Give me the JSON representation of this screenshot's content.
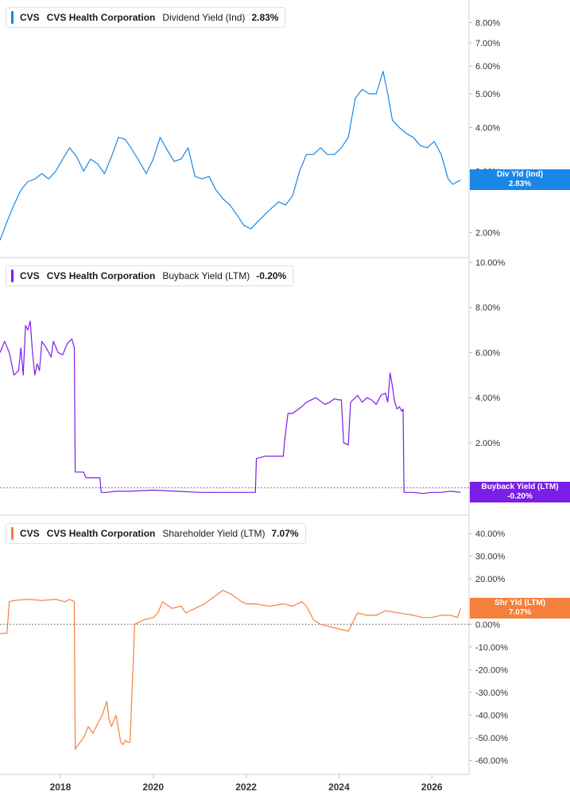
{
  "x_axis": {
    "ticks": [
      "2018",
      "2020",
      "2022",
      "2024",
      "2026"
    ]
  },
  "panels": [
    {
      "id": "div",
      "legend": {
        "ticker": "CVS",
        "company": "CVS Health Corporation",
        "metric": "Dividend Yield (Ind)",
        "value": "2.83%"
      },
      "tag": {
        "label": "Div Yld (Ind)",
        "value": "2.83%"
      },
      "color": "#1a87e6",
      "ticks": [
        "8.00%",
        "7.00%",
        "6.00%",
        "5.00%",
        "4.00%",
        "3.00%",
        "2.00%"
      ]
    },
    {
      "id": "buyback",
      "legend": {
        "ticker": "CVS",
        "company": "CVS Health Corporation",
        "metric": "Buyback Yield (LTM)",
        "value": "-0.20%"
      },
      "tag": {
        "label": "Buyback Yield (LTM)",
        "value": "-0.20%"
      },
      "color": "#7a1ee8",
      "ticks": [
        "10.00%",
        "8.00%",
        "6.00%",
        "4.00%",
        "2.00%"
      ]
    },
    {
      "id": "shareholder",
      "legend": {
        "ticker": "CVS",
        "company": "CVS Health Corporation",
        "metric": "Shareholder Yield (LTM)",
        "value": "7.07%"
      },
      "tag": {
        "label": "Shr Yld (LTM)",
        "value": "7.07%"
      },
      "color": "#f57f3c",
      "ticks": [
        "40.00%",
        "30.00%",
        "20.00%",
        "10.00%",
        "0.00%",
        "-10.00%",
        "-20.00%",
        "-30.00%",
        "-40.00%",
        "-50.00%",
        "-60.00%"
      ]
    }
  ],
  "chart_data": [
    {
      "type": "line",
      "title": "CVS Health Corporation Dividend Yield (Ind)",
      "y_scale": "log",
      "ylim": [
        1.75,
        9.0
      ],
      "xlim": [
        2016.7,
        2026.8
      ],
      "series": [
        {
          "name": "Dividend Yield (Ind)",
          "x": [
            2016.7,
            2016.85,
            2017.0,
            2017.15,
            2017.3,
            2017.45,
            2017.6,
            2017.75,
            2017.9,
            2018.05,
            2018.2,
            2018.35,
            2018.5,
            2018.65,
            2018.8,
            2018.95,
            2019.1,
            2019.25,
            2019.4,
            2019.55,
            2019.7,
            2019.85,
            2020.0,
            2020.15,
            2020.3,
            2020.45,
            2020.6,
            2020.75,
            2020.9,
            2021.05,
            2021.2,
            2021.35,
            2021.5,
            2021.65,
            2021.8,
            2021.95,
            2022.1,
            2022.25,
            2022.4,
            2022.55,
            2022.7,
            2022.85,
            2023.0,
            2023.15,
            2023.3,
            2023.45,
            2023.6,
            2023.75,
            2023.9,
            2024.05,
            2024.2,
            2024.35,
            2024.5,
            2024.65,
            2024.8,
            2024.95,
            2025.05,
            2025.15,
            2025.3,
            2025.45,
            2025.6,
            2025.75,
            2025.9,
            2026.05,
            2026.2,
            2026.35,
            2026.45,
            2026.55,
            2026.62
          ],
          "values": [
            1.9,
            2.15,
            2.4,
            2.65,
            2.8,
            2.85,
            2.95,
            2.85,
            3.0,
            3.25,
            3.5,
            3.3,
            3.0,
            3.25,
            3.15,
            2.95,
            3.3,
            3.75,
            3.7,
            3.45,
            3.2,
            2.95,
            3.25,
            3.75,
            3.45,
            3.2,
            3.25,
            3.5,
            2.9,
            2.85,
            2.9,
            2.65,
            2.5,
            2.4,
            2.25,
            2.1,
            2.05,
            2.15,
            2.25,
            2.35,
            2.45,
            2.4,
            2.55,
            3.0,
            3.35,
            3.35,
            3.5,
            3.35,
            3.35,
            3.5,
            3.75,
            4.85,
            5.15,
            5.0,
            5.0,
            5.8,
            5.0,
            4.2,
            4.0,
            3.85,
            3.75,
            3.55,
            3.5,
            3.65,
            3.35,
            2.85,
            2.75,
            2.8,
            2.83
          ]
        }
      ]
    },
    {
      "type": "line",
      "title": "CVS Health Corporation Buyback Yield (LTM)",
      "ylim": [
        -1.0,
        10.0
      ],
      "xlim": [
        2016.7,
        2026.8
      ],
      "series": [
        {
          "name": "Buyback Yield (LTM)",
          "x": [
            2016.7,
            2016.8,
            2016.9,
            2017.0,
            2017.1,
            2017.15,
            2017.2,
            2017.25,
            2017.3,
            2017.35,
            2017.4,
            2017.45,
            2017.5,
            2017.55,
            2017.6,
            2017.7,
            2017.8,
            2017.85,
            2017.95,
            2018.05,
            2018.15,
            2018.25,
            2018.3,
            2018.32,
            2018.5,
            2018.55,
            2018.75,
            2018.85,
            2018.88,
            2019.0,
            2019.2,
            2019.5,
            2020.0,
            2020.5,
            2021.0,
            2021.5,
            2022.0,
            2022.2,
            2022.22,
            2022.4,
            2022.6,
            2022.8,
            2022.83,
            2022.9,
            2023.0,
            2023.2,
            2023.3,
            2023.5,
            2023.7,
            2023.8,
            2023.9,
            2024.0,
            2024.05,
            2024.1,
            2024.2,
            2024.25,
            2024.3,
            2024.4,
            2024.5,
            2024.6,
            2024.7,
            2024.8,
            2024.9,
            2025.0,
            2025.05,
            2025.1,
            2025.15,
            2025.2,
            2025.25,
            2025.3,
            2025.35,
            2025.38,
            2025.4,
            2025.5,
            2025.6,
            2025.8,
            2026.0,
            2026.2,
            2026.4,
            2026.62
          ],
          "values": [
            6.0,
            6.5,
            6.0,
            5.0,
            5.2,
            6.2,
            5.0,
            7.2,
            7.0,
            7.4,
            6.0,
            5.0,
            5.5,
            5.2,
            6.5,
            6.2,
            5.8,
            6.5,
            6.0,
            5.9,
            6.4,
            6.6,
            6.2,
            0.7,
            0.7,
            0.45,
            0.45,
            0.45,
            -0.2,
            -0.2,
            -0.15,
            -0.15,
            -0.1,
            -0.15,
            -0.2,
            -0.2,
            -0.2,
            -0.2,
            1.3,
            1.4,
            1.4,
            1.4,
            2.1,
            3.3,
            3.3,
            3.6,
            3.8,
            4.0,
            3.7,
            3.8,
            3.95,
            3.9,
            3.9,
            2.0,
            1.9,
            3.8,
            3.9,
            4.1,
            3.8,
            4.0,
            3.9,
            3.7,
            4.1,
            4.2,
            3.8,
            5.1,
            4.5,
            3.8,
            3.5,
            3.6,
            3.4,
            3.5,
            -0.2,
            -0.2,
            -0.2,
            -0.25,
            -0.2,
            -0.2,
            -0.15,
            -0.2
          ]
        }
      ]
    },
    {
      "type": "line",
      "title": "CVS Health Corporation Shareholder Yield (LTM)",
      "ylim": [
        -64,
        46
      ],
      "xlim": [
        2016.7,
        2026.8
      ],
      "series": [
        {
          "name": "Shareholder Yield (LTM)",
          "x": [
            2016.7,
            2016.85,
            2016.9,
            2017.0,
            2017.3,
            2017.6,
            2017.9,
            2018.1,
            2018.2,
            2018.3,
            2018.32,
            2018.35,
            2018.5,
            2018.6,
            2018.7,
            2018.8,
            2018.9,
            2019.0,
            2019.05,
            2019.1,
            2019.2,
            2019.3,
            2019.35,
            2019.4,
            2019.45,
            2019.5,
            2019.6,
            2019.8,
            2020.0,
            2020.1,
            2020.2,
            2020.4,
            2020.6,
            2020.7,
            2020.9,
            2021.1,
            2021.3,
            2021.5,
            2021.6,
            2021.7,
            2021.9,
            2022.0,
            2022.2,
            2022.5,
            2022.8,
            2023.0,
            2023.2,
            2023.3,
            2023.45,
            2023.6,
            2023.8,
            2024.0,
            2024.2,
            2024.35,
            2024.4,
            2024.6,
            2024.8,
            2025.0,
            2025.3,
            2025.6,
            2025.8,
            2026.0,
            2026.2,
            2026.4,
            2026.55,
            2026.62
          ],
          "values": [
            -4,
            -4,
            10,
            10.5,
            11,
            10.5,
            11,
            10,
            11,
            10,
            -55,
            -54,
            -50,
            -45,
            -48,
            -44,
            -40,
            -34,
            -42,
            -45,
            -40,
            -52,
            -53,
            -51,
            -52,
            -52,
            0,
            2,
            3,
            5,
            10,
            7,
            8,
            5,
            7,
            9,
            12,
            15,
            14,
            13,
            10,
            9,
            9,
            8,
            9,
            8,
            10,
            8,
            2,
            0,
            -1,
            -2,
            -3,
            3,
            5,
            4,
            4,
            6,
            5,
            4,
            3,
            3,
            4,
            4,
            3,
            7
          ]
        }
      ]
    }
  ]
}
